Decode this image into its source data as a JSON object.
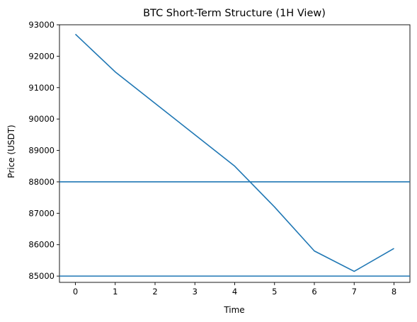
{
  "chart_data": {
    "type": "line",
    "title": "BTC Short-Term Structure (1H View)",
    "xlabel": "Time",
    "ylabel": "Price (USDT)",
    "xlim": [
      -0.4,
      8.4
    ],
    "ylim": [
      84800,
      93000
    ],
    "x_ticks": [
      0,
      1,
      2,
      3,
      4,
      5,
      6,
      7,
      8
    ],
    "y_ticks": [
      85000,
      86000,
      87000,
      88000,
      89000,
      90000,
      91000,
      92000,
      93000
    ],
    "grid": false,
    "series": [
      {
        "x": [
          0,
          1,
          2,
          3,
          4,
          5,
          6,
          7,
          8
        ],
        "values": [
          92700,
          91500,
          90500,
          89500,
          88500,
          87200,
          85800,
          85150,
          85880
        ],
        "color": "#1f77b4"
      }
    ],
    "horizontal_lines": [
      {
        "y": 88000,
        "color": "#1f77b4"
      },
      {
        "y": 85000,
        "color": "#1f77b4"
      }
    ]
  }
}
